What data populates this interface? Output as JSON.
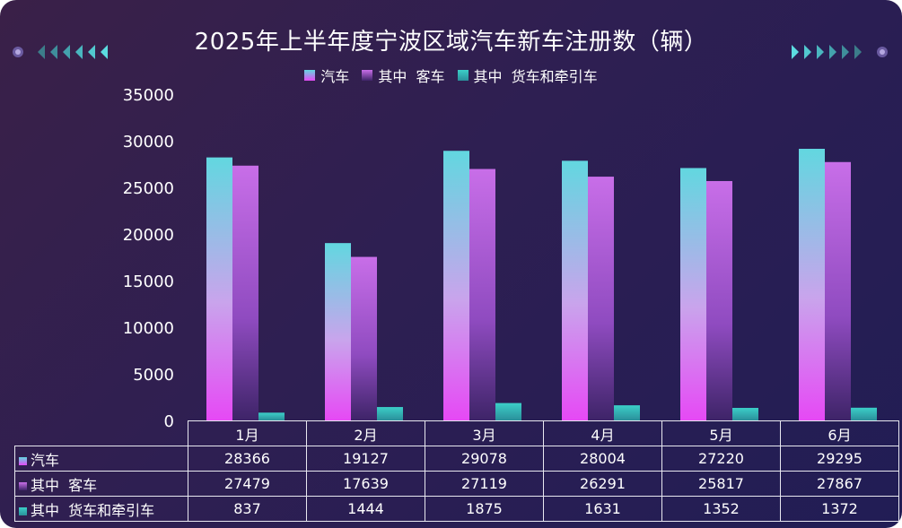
{
  "chart_data": {
    "type": "bar",
    "title": "2025年上半年度宁波区域汽车新车注册数（辆）",
    "categories": [
      "1月",
      "2月",
      "3月",
      "4月",
      "5月",
      "6月"
    ],
    "series": [
      {
        "name": "汽车",
        "values": [
          28366,
          19127,
          29078,
          28004,
          27220,
          29295
        ],
        "color": "#62d7e0",
        "color_bottom": "#e649f5"
      },
      {
        "name": "其中  客车",
        "values": [
          27479,
          17639,
          27119,
          26291,
          25817,
          27867
        ],
        "color": "#c86ee8",
        "color_bottom": "#3e2468"
      },
      {
        "name": "其中  货车和牵引车",
        "values": [
          837,
          1444,
          1875,
          1631,
          1352,
          1372
        ],
        "color": "#3ccfc8",
        "color_bottom": "#2a8f9a"
      }
    ],
    "yticks": [
      0,
      5000,
      10000,
      15000,
      20000,
      25000,
      30000,
      35000
    ],
    "ylim": [
      0,
      35000
    ],
    "legend_position": "top",
    "data_table": true
  },
  "yticks_text": [
    "35000",
    "30000",
    "25000",
    "20000",
    "15000",
    "10000",
    "5000",
    "0"
  ],
  "table": {
    "rows": [
      {
        "label": "汽车",
        "values": [
          "28366",
          "19127",
          "29078",
          "28004",
          "27220",
          "29295"
        ]
      },
      {
        "label": "其中  客车",
        "values": [
          "27479",
          "17639",
          "27119",
          "26291",
          "25817",
          "27867"
        ]
      },
      {
        "label": "其中  货车和牵引车",
        "values": [
          "837",
          "1444",
          "1875",
          "1631",
          "1352",
          "1372"
        ]
      }
    ]
  }
}
